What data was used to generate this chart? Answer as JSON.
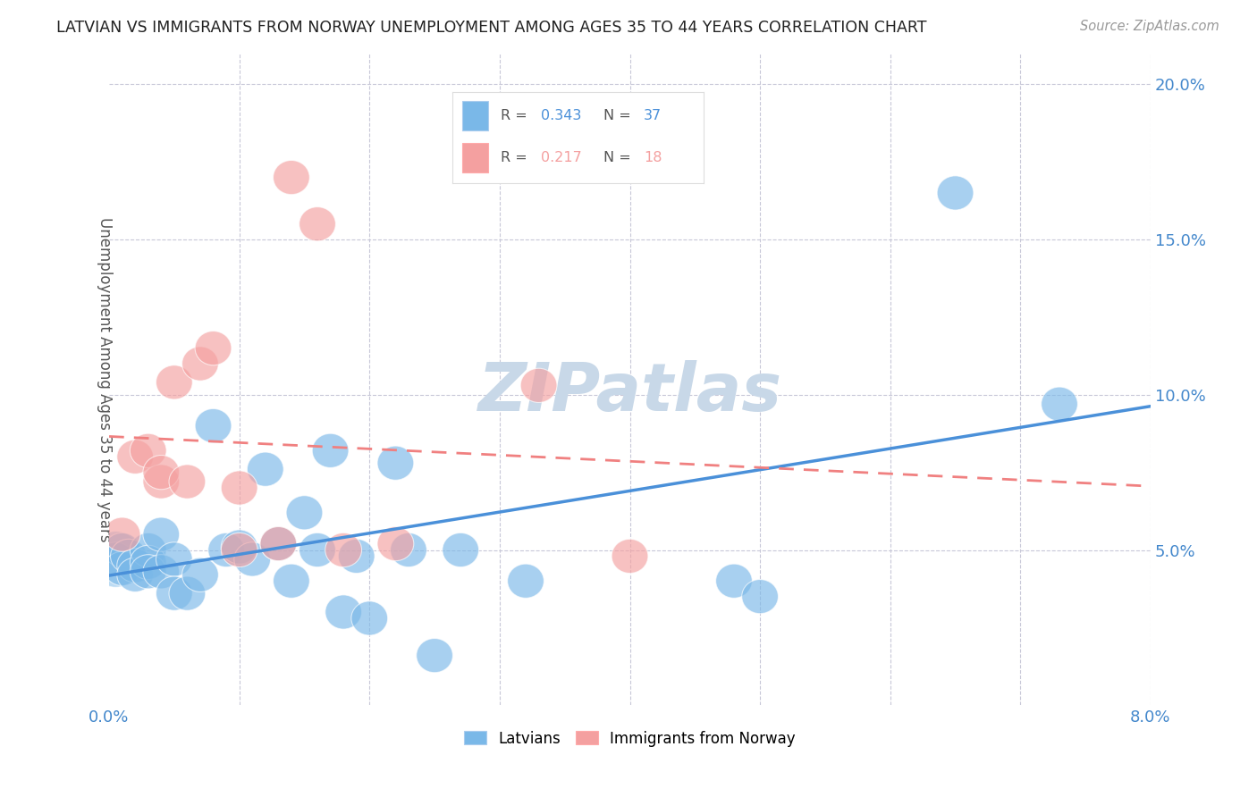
{
  "title": "LATVIAN VS IMMIGRANTS FROM NORWAY UNEMPLOYMENT AMONG AGES 35 TO 44 YEARS CORRELATION CHART",
  "source": "Source: ZipAtlas.com",
  "ylabel": "Unemployment Among Ages 35 to 44 years",
  "xlim": [
    0.0,
    0.08
  ],
  "ylim": [
    0.0,
    0.21
  ],
  "xticks": [
    0.0,
    0.01,
    0.02,
    0.03,
    0.04,
    0.05,
    0.06,
    0.07,
    0.08
  ],
  "yticks": [
    0.0,
    0.05,
    0.1,
    0.15,
    0.2
  ],
  "xtick_labels": [
    "0.0%",
    "",
    "",
    "",
    "",
    "",
    "",
    "",
    "8.0%"
  ],
  "ytick_labels": [
    "",
    "5.0%",
    "10.0%",
    "15.0%",
    "20.0%"
  ],
  "latvian_color": "#7ab8e8",
  "norway_color": "#f4a0a0",
  "latvian_line_color": "#4a90d9",
  "norway_line_color": "#f08080",
  "latvian_R": "0.343",
  "latvian_N": "37",
  "norway_R": "0.217",
  "norway_N": "18",
  "latvian_x": [
    0.0005,
    0.001,
    0.001,
    0.0015,
    0.002,
    0.002,
    0.003,
    0.003,
    0.003,
    0.004,
    0.004,
    0.005,
    0.005,
    0.006,
    0.007,
    0.008,
    0.009,
    0.01,
    0.011,
    0.012,
    0.013,
    0.014,
    0.015,
    0.016,
    0.017,
    0.018,
    0.019,
    0.02,
    0.022,
    0.023,
    0.025,
    0.027,
    0.032,
    0.048,
    0.05,
    0.065,
    0.073
  ],
  "latvian_y": [
    0.047,
    0.05,
    0.044,
    0.048,
    0.045,
    0.042,
    0.05,
    0.046,
    0.043,
    0.055,
    0.043,
    0.047,
    0.036,
    0.036,
    0.042,
    0.09,
    0.05,
    0.051,
    0.047,
    0.076,
    0.052,
    0.04,
    0.062,
    0.05,
    0.082,
    0.03,
    0.048,
    0.028,
    0.078,
    0.05,
    0.016,
    0.05,
    0.04,
    0.04,
    0.035,
    0.165,
    0.097
  ],
  "norway_x": [
    0.001,
    0.002,
    0.003,
    0.004,
    0.004,
    0.005,
    0.006,
    0.007,
    0.008,
    0.01,
    0.01,
    0.013,
    0.014,
    0.016,
    0.018,
    0.022,
    0.033,
    0.04
  ],
  "norway_y": [
    0.055,
    0.08,
    0.082,
    0.072,
    0.075,
    0.104,
    0.072,
    0.11,
    0.115,
    0.05,
    0.07,
    0.052,
    0.17,
    0.155,
    0.05,
    0.052,
    0.103,
    0.048
  ],
  "background_color": "#ffffff",
  "grid_color": "#c8c8d8",
  "watermark": "ZIPatlas",
  "watermark_color": "#c8d8e8",
  "title_color": "#222222",
  "source_color": "#999999",
  "axis_color": "#4488cc",
  "ylabel_color": "#555555"
}
